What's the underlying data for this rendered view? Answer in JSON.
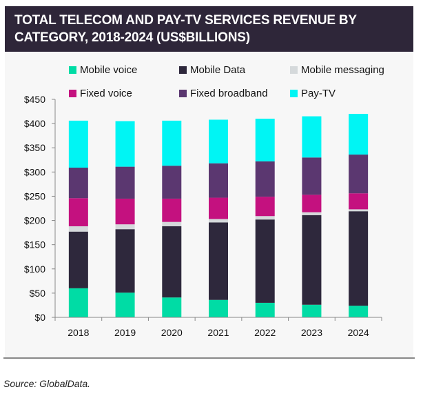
{
  "chart_data": {
    "type": "bar",
    "stacked": true,
    "title": "TOTAL TELECOM AND PAY-TV SERVICES REVENUE BY CATEGORY, 2018-2024 (US$BILLIONS)",
    "title_lines": [
      "TOTAL TELECOM AND PAY-TV SERVICES REVENUE BY",
      "CATEGORY, 2018-2024 (US$BILLIONS)"
    ],
    "xlabel": "",
    "ylabel": "",
    "categories": [
      "2018",
      "2019",
      "2020",
      "2021",
      "2022",
      "2023",
      "2024"
    ],
    "ylim": [
      0,
      450
    ],
    "y_ticks": [
      0,
      50,
      100,
      150,
      200,
      250,
      300,
      350,
      400,
      450
    ],
    "y_tick_labels": [
      "$0",
      "$50",
      "$100",
      "$150",
      "$200",
      "$250",
      "$300",
      "$350",
      "$400",
      "$450"
    ],
    "grid": false,
    "legend_position": "top",
    "series": [
      {
        "name": "Mobile voice",
        "color": "#00dca5",
        "values": [
          60,
          51,
          41,
          36,
          30,
          26,
          24
        ]
      },
      {
        "name": "Mobile Data",
        "color": "#2e283c",
        "values": [
          117,
          131,
          147,
          160,
          172,
          185,
          195
        ]
      },
      {
        "name": "Mobile messaging",
        "color": "#d5d9db",
        "values": [
          11,
          10,
          9,
          7,
          7,
          6,
          4
        ]
      },
      {
        "name": "Fixed voice",
        "color": "#c4117f",
        "values": [
          58,
          53,
          48,
          44,
          40,
          36,
          33
        ]
      },
      {
        "name": "Fixed broadband",
        "color": "#5b3770",
        "values": [
          63,
          66,
          68,
          71,
          73,
          77,
          80
        ]
      },
      {
        "name": "Pay-TV",
        "color": "#00f5f4",
        "values": [
          97,
          94,
          93,
          90,
          88,
          85,
          84
        ]
      }
    ],
    "legend_order": [
      0,
      1,
      2,
      3,
      4,
      5
    ]
  },
  "source": "Source: GlobalData."
}
